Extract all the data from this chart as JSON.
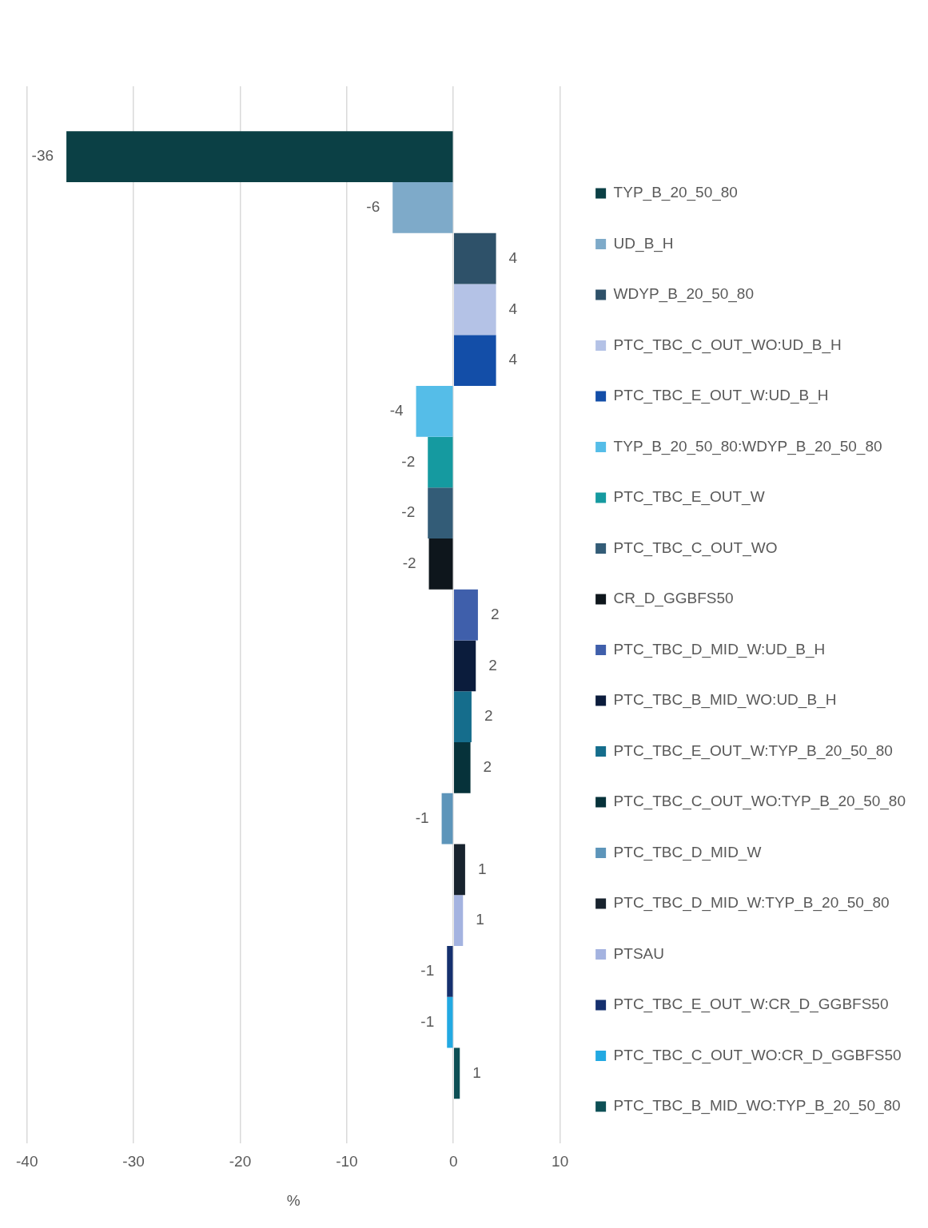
{
  "chart_data": {
    "type": "bar",
    "orientation": "horizontal",
    "xlabel": "%",
    "categories": [
      null
    ],
    "xlim": [
      -40,
      10
    ],
    "xticks": [
      -40,
      -30,
      -20,
      -10,
      0,
      10
    ],
    "grid": "x",
    "legend": "right",
    "series": [
      {
        "name": "TYP_B_20_50_80",
        "color": "#0b4045",
        "values": [
          -36.3
        ],
        "value_labels": [
          "-36"
        ]
      },
      {
        "name": "UD_B_H",
        "color": "#7eaac9",
        "values": [
          -5.7
        ],
        "value_labels": [
          "-6"
        ]
      },
      {
        "name": "WDYP_B_20_50_80",
        "color": "#2e5169",
        "values": [
          4.0
        ],
        "value_labels": [
          "4"
        ]
      },
      {
        "name": "PTC_TBC_C_OUT_WO:UD_B_H",
        "color": "#b4c2e6",
        "values": [
          4.0
        ],
        "value_labels": [
          "4"
        ]
      },
      {
        "name": "PTC_TBC_E_OUT_W:UD_B_H",
        "color": "#134ea8",
        "values": [
          4.0
        ],
        "value_labels": [
          "4"
        ]
      },
      {
        "name": "TYP_B_20_50_80:WDYP_B_20_50_80",
        "color": "#55bde8",
        "values": [
          -3.5
        ],
        "value_labels": [
          "-4"
        ]
      },
      {
        "name": "PTC_TBC_E_OUT_W",
        "color": "#159aa0",
        "values": [
          -2.4
        ],
        "value_labels": [
          "-2"
        ]
      },
      {
        "name": "PTC_TBC_C_OUT_WO",
        "color": "#335c77",
        "values": [
          -2.4
        ],
        "value_labels": [
          "-2"
        ]
      },
      {
        "name": "CR_D_GGBFS50",
        "color": "#0e161c",
        "values": [
          -2.3
        ],
        "value_labels": [
          "-2"
        ]
      },
      {
        "name": "PTC_TBC_D_MID_W:UD_B_H",
        "color": "#3f5fab",
        "values": [
          2.3
        ],
        "value_labels": [
          "2"
        ]
      },
      {
        "name": "PTC_TBC_B_MID_WO:UD_B_H",
        "color": "#0b1c3c",
        "values": [
          2.1
        ],
        "value_labels": [
          "2"
        ]
      },
      {
        "name": "PTC_TBC_E_OUT_W:TYP_B_20_50_80",
        "color": "#156d8c",
        "values": [
          1.7
        ],
        "value_labels": [
          "2"
        ]
      },
      {
        "name": "PTC_TBC_C_OUT_WO:TYP_B_20_50_80",
        "color": "#06323a",
        "values": [
          1.6
        ],
        "value_labels": [
          "2"
        ]
      },
      {
        "name": "PTC_TBC_D_MID_W",
        "color": "#5d95ba",
        "values": [
          -1.1
        ],
        "value_labels": [
          "-1"
        ]
      },
      {
        "name": "PTC_TBC_D_MID_W:TYP_B_20_50_80",
        "color": "#18232e",
        "values": [
          1.1
        ],
        "value_labels": [
          "1"
        ]
      },
      {
        "name": "PTSAU",
        "color": "#a4b3e0",
        "values": [
          0.9
        ],
        "value_labels": [
          "1"
        ]
      },
      {
        "name": "PTC_TBC_E_OUT_W:CR_D_GGBFS50",
        "color": "#15306e",
        "values": [
          -0.6
        ],
        "value_labels": [
          "-1"
        ]
      },
      {
        "name": "PTC_TBC_C_OUT_WO:CR_D_GGBFS50",
        "color": "#22a9e2",
        "values": [
          -0.6
        ],
        "value_labels": [
          "-1"
        ]
      },
      {
        "name": "PTC_TBC_B_MID_WO:TYP_B_20_50_80",
        "color": "#0d4f55",
        "values": [
          0.6
        ],
        "value_labels": [
          "1"
        ]
      }
    ]
  }
}
